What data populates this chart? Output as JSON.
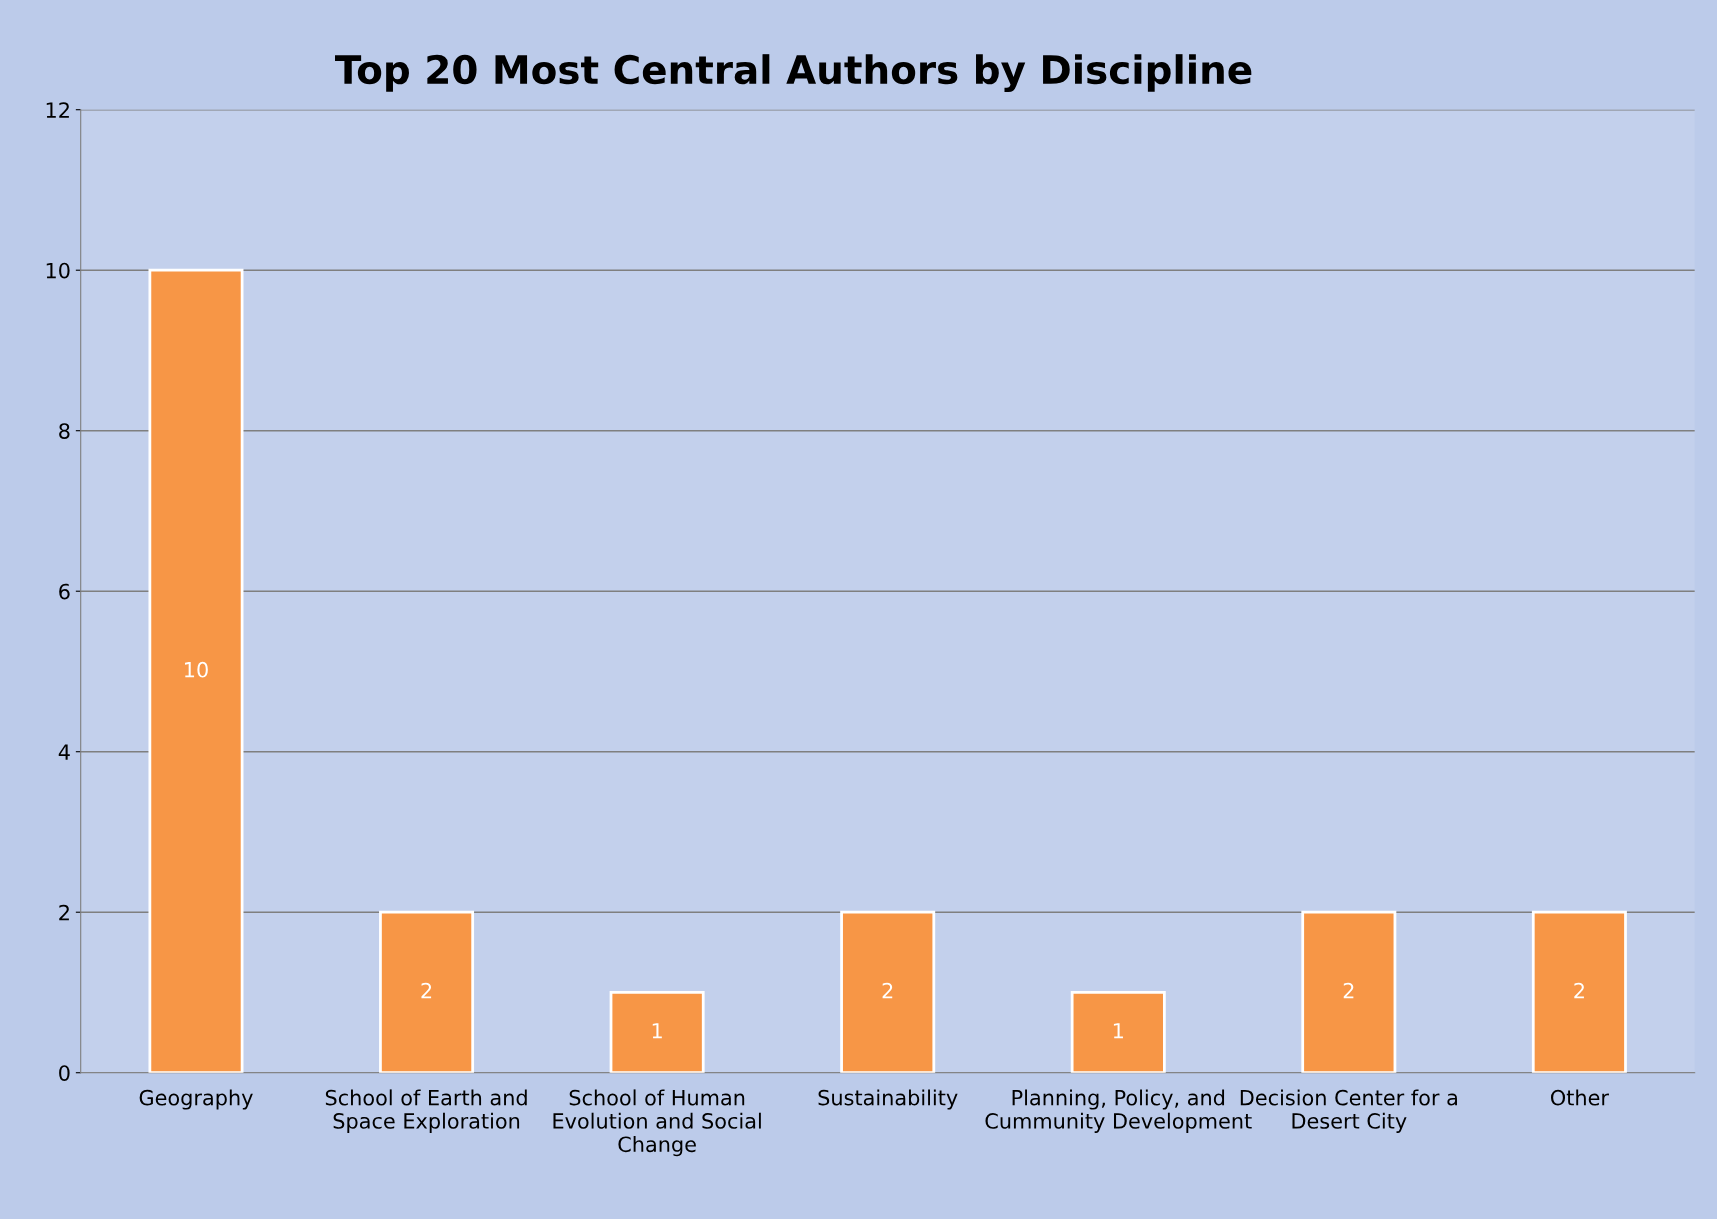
{
  "chart_data": {
    "type": "bar",
    "title": "Top 20 Most Central Authors by Discipline",
    "categories": [
      "Geography",
      "School of Earth and Space Exploration",
      "School of Human Evolution and Social Change",
      "Sustainability",
      "Planning, Policy, and Cummunity Development",
      "Decision Center for a Desert City",
      "Other"
    ],
    "values": [
      10,
      2,
      1,
      2,
      1,
      2,
      2
    ],
    "color": "#f79646",
    "ylim": [
      0,
      12
    ],
    "yticks": [
      0,
      2,
      4,
      6,
      8,
      10,
      12
    ],
    "grid": "y",
    "data_labels": true,
    "legend": false
  }
}
